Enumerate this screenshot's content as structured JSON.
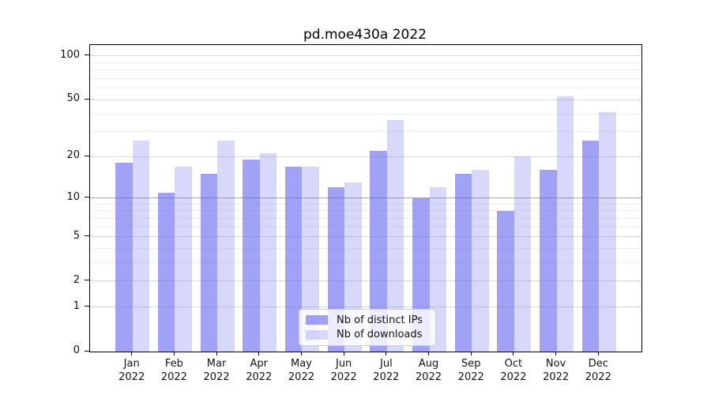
{
  "chart_data": {
    "type": "bar",
    "title": "pd.moe430a 2022",
    "categories": [
      "Jan",
      "Feb",
      "Mar",
      "Apr",
      "May",
      "Jun",
      "Jul",
      "Aug",
      "Sep",
      "Oct",
      "Nov",
      "Dec"
    ],
    "x_tick_year": "2022",
    "series": [
      {
        "name": "Nb of distinct IPs",
        "values": [
          18,
          11,
          15,
          19,
          17,
          12,
          22,
          10,
          15,
          8,
          16,
          26
        ],
        "color": "rgba(98,98,238,0.60)"
      },
      {
        "name": "Nb of downloads",
        "values": [
          26,
          17,
          26,
          21,
          17,
          13,
          36,
          12,
          16,
          20,
          53,
          41
        ],
        "color": "rgba(98,98,238,0.25)"
      }
    ],
    "yscale": "log1p",
    "ylim": [
      0,
      119
    ],
    "yticks": [
      100,
      50,
      20,
      10,
      5,
      2,
      1,
      0
    ],
    "minor_gridlines": [
      3,
      4,
      6,
      7,
      8,
      9,
      30,
      40,
      60,
      70,
      80,
      90
    ],
    "emphasized_gridline": 10,
    "grid": true,
    "legend_position": "lower-center"
  },
  "colors": {
    "background": "#ffffff",
    "spine": "#000000",
    "text": "#111111",
    "grid_minor": "#eeeeee",
    "grid_major": "#d9d9d9",
    "grid_emphasis": "#a5a5a5",
    "legend_bg": "rgba(255,255,255,0.8)",
    "legend_border": "#cccccc"
  }
}
